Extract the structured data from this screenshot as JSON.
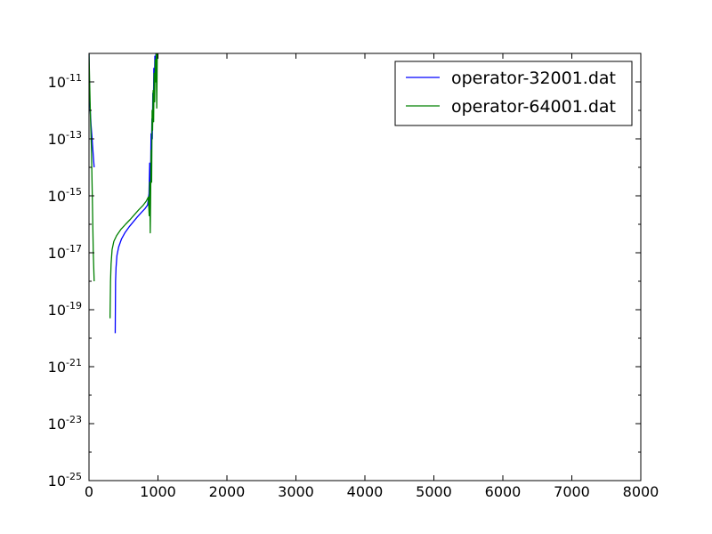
{
  "chart_data": {
    "type": "line",
    "title": "",
    "xlabel": "",
    "ylabel": "",
    "xlim": [
      0,
      8000
    ],
    "ylim": [
      1e-25,
      1e-10
    ],
    "yscale": "log",
    "grid": false,
    "legend_position": "top-right",
    "x_ticks": [
      {
        "value": 0,
        "label": "0"
      },
      {
        "value": 1000,
        "label": "1000"
      },
      {
        "value": 2000,
        "label": "2000"
      },
      {
        "value": 3000,
        "label": "3000"
      },
      {
        "value": 4000,
        "label": "4000"
      },
      {
        "value": 5000,
        "label": "5000"
      },
      {
        "value": 6000,
        "label": "6000"
      },
      {
        "value": 7000,
        "label": "7000"
      },
      {
        "value": 8000,
        "label": "8000"
      }
    ],
    "y_ticks": [
      {
        "value": 1e-11,
        "base": "10",
        "exp": "-11"
      },
      {
        "value": 1e-13,
        "base": "10",
        "exp": "-13"
      },
      {
        "value": 1e-15,
        "base": "10",
        "exp": "-15"
      },
      {
        "value": 1e-17,
        "base": "10",
        "exp": "-17"
      },
      {
        "value": 1e-19,
        "base": "10",
        "exp": "-19"
      },
      {
        "value": 1e-21,
        "base": "10",
        "exp": "-21"
      },
      {
        "value": 1e-23,
        "base": "10",
        "exp": "-23"
      },
      {
        "value": 1e-25,
        "base": "10",
        "exp": "-25"
      }
    ],
    "series": [
      {
        "name": "operator-32001.dat",
        "color": "#0000ff",
        "segments": [
          [
            [
              0,
              1e-10
            ],
            [
              8,
              3e-12
            ],
            [
              18,
              1e-12
            ],
            [
              30,
              3e-13
            ],
            [
              45,
              1e-13
            ],
            [
              60,
              3e-14
            ],
            [
              75,
              1e-14
            ]
          ],
          [
            [
              380,
              1.5e-20
            ],
            [
              385,
              1e-18
            ],
            [
              392,
              3e-18
            ],
            [
              405,
              8e-18
            ],
            [
              430,
              1.6e-17
            ],
            [
              470,
              3e-17
            ],
            [
              520,
              5e-17
            ],
            [
              580,
              8e-17
            ],
            [
              640,
              1.2e-16
            ],
            [
              700,
              1.8e-16
            ],
            [
              760,
              2.6e-16
            ],
            [
              810,
              3.5e-16
            ],
            [
              850,
              4.8e-16
            ],
            [
              870,
              1.2e-15
            ],
            [
              880,
              1.4e-14
            ],
            [
              886,
              3e-15
            ],
            [
              893,
              6e-15
            ],
            [
              900,
              1.5e-13
            ],
            [
              905,
              3e-14
            ],
            [
              912,
              5e-13
            ],
            [
              918,
              1e-13
            ],
            [
              925,
              4e-12
            ],
            [
              932,
              5e-13
            ],
            [
              940,
              3e-11
            ],
            [
              948,
              5e-12
            ],
            [
              955,
              8e-11
            ],
            [
              962,
              2e-11
            ],
            [
              970,
              1e-10
            ],
            [
              980,
              3e-11
            ],
            [
              990,
              1e-10
            ],
            [
              1000,
              1e-10
            ]
          ]
        ]
      },
      {
        "name": "operator-64001.dat",
        "color": "#008000",
        "segments": [
          [
            [
              0,
              1e-10
            ],
            [
              10,
              8e-12
            ],
            [
              22,
              5e-13
            ],
            [
              35,
              5e-14
            ],
            [
              50,
              5e-16
            ],
            [
              62,
              1e-17
            ],
            [
              75,
              1e-18
            ]
          ],
          [
            [
              305,
              5e-20
            ],
            [
              312,
              1e-18
            ],
            [
              320,
              4e-18
            ],
            [
              335,
              1.3e-17
            ],
            [
              360,
              2.5e-17
            ],
            [
              400,
              4e-17
            ],
            [
              460,
              6.5e-17
            ],
            [
              530,
              1e-16
            ],
            [
              600,
              1.5e-16
            ],
            [
              660,
              2.2e-16
            ],
            [
              720,
              3.2e-16
            ],
            [
              780,
              4.5e-16
            ],
            [
              830,
              6.5e-16
            ],
            [
              860,
              9e-16
            ],
            [
              873,
              2e-16
            ],
            [
              880,
              3e-15
            ],
            [
              888,
              5e-17
            ],
            [
              895,
              2e-15
            ],
            [
              902,
              4e-14
            ],
            [
              908,
              3e-15
            ],
            [
              915,
              1e-12
            ],
            [
              922,
              2e-13
            ],
            [
              930,
              5e-12
            ],
            [
              937,
              4e-13
            ],
            [
              944,
              2e-11
            ],
            [
              952,
              2e-12
            ],
            [
              960,
              6e-11
            ],
            [
              968,
              1e-11
            ],
            [
              975,
              1e-10
            ],
            [
              982,
              1.2e-12
            ],
            [
              990,
              1e-10
            ],
            [
              1000,
              1e-10
            ]
          ]
        ]
      }
    ]
  }
}
